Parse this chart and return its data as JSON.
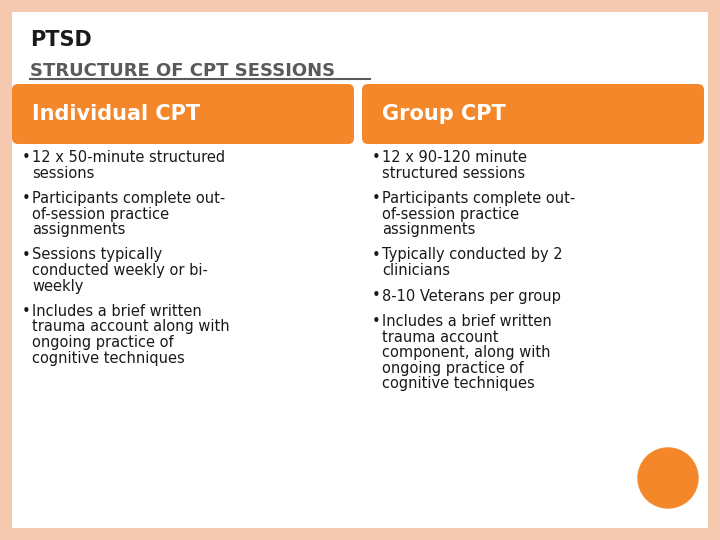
{
  "background_color": "#ffffff",
  "border_color": "#f5c8b0",
  "title_top": "PTSD",
  "section_title": "STRUCTURE OF CPT SESSIONS",
  "header_bg": "#f4872a",
  "header_text_color": "#ffffff",
  "col1_header": "Individual CPT",
  "col2_header": "Group CPT",
  "col1_bullets": [
    [
      "12 x 50-minute structured",
      "sessions"
    ],
    [
      "Participants complete out-",
      "of-session practice",
      "assignments"
    ],
    [
      "Sessions typically",
      "conducted weekly or bi-",
      "weekly"
    ],
    [
      "Includes a brief written",
      "trauma account along with",
      "ongoing practice of",
      "cognitive techniques"
    ]
  ],
  "col2_bullets": [
    [
      "12 x 90-120 minute",
      "structured sessions"
    ],
    [
      "Participants complete out-",
      "of-session practice",
      "assignments"
    ],
    [
      "Typically conducted by 2",
      "clinicians"
    ],
    [
      "8-10 Veterans per group"
    ],
    [
      "Includes a brief written",
      "trauma account",
      "component, along with",
      "ongoing practice of",
      "cognitive techniques"
    ]
  ],
  "text_color": "#1a1a1a",
  "font_family": "DejaVu Sans",
  "circle_color": "#f4872a",
  "section_title_color": "#5a5a5a",
  "ptsd_color": "#1a1a1a"
}
